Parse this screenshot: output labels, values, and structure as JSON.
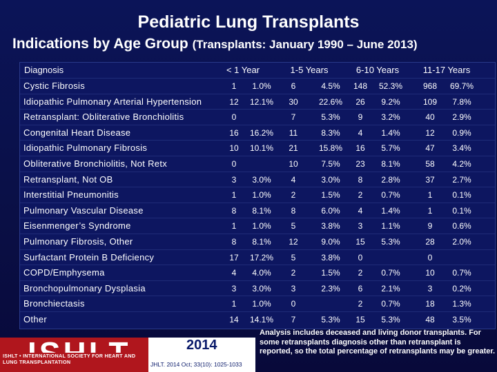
{
  "header": {
    "title": "Pediatric Lung Transplants",
    "subtitle": "Indications by Age Group",
    "subtitle_note": "(Transplants: January 1990 – June 2013)"
  },
  "table": {
    "columns": [
      "Diagnosis",
      "< 1 Year",
      "1-5 Years",
      "6-10 Years",
      "11-17 Years"
    ],
    "rows": [
      {
        "diagnosis": "Cystic Fibrosis",
        "cells": [
          "1",
          "1.0%",
          "6",
          "4.5%",
          "148",
          "52.3%",
          "968",
          "69.7%"
        ]
      },
      {
        "diagnosis": "Idiopathic Pulmonary Arterial Hypertension",
        "cells": [
          "12",
          "12.1%",
          "30",
          "22.6%",
          "26",
          "9.2%",
          "109",
          "7.8%"
        ]
      },
      {
        "diagnosis": "Retransplant: Obliterative Bronchiolitis",
        "cells": [
          "0",
          null,
          "7",
          "5.3%",
          "9",
          "3.2%",
          "40",
          "2.9%"
        ]
      },
      {
        "diagnosis": "Congenital Heart Disease",
        "cells": [
          "16",
          "16.2%",
          "11",
          "8.3%",
          "4",
          "1.4%",
          "12",
          "0.9%"
        ]
      },
      {
        "diagnosis": "Idiopathic Pulmonary Fibrosis",
        "cells": [
          "10",
          "10.1%",
          "21",
          "15.8%",
          "16",
          "5.7%",
          "47",
          "3.4%"
        ]
      },
      {
        "diagnosis": "Obliterative Bronchiolitis, Not Retx",
        "cells": [
          "0",
          null,
          "10",
          "7.5%",
          "23",
          "8.1%",
          "58",
          "4.2%"
        ]
      },
      {
        "diagnosis": "Retransplant, Not OB",
        "cells": [
          "3",
          "3.0%",
          "4",
          "3.0%",
          "8",
          "2.8%",
          "37",
          "2.7%"
        ]
      },
      {
        "diagnosis": "Interstitial Pneumonitis",
        "cells": [
          "1",
          "1.0%",
          "2",
          "1.5%",
          "2",
          "0.7%",
          "1",
          "0.1%"
        ]
      },
      {
        "diagnosis": "Pulmonary Vascular Disease",
        "cells": [
          "8",
          "8.1%",
          "8",
          "6.0%",
          "4",
          "1.4%",
          "1",
          "0.1%"
        ]
      },
      {
        "diagnosis": "Eisenmenger’s Syndrome",
        "cells": [
          "1",
          "1.0%",
          "5",
          "3.8%",
          "3",
          "1.1%",
          "9",
          "0.6%"
        ]
      },
      {
        "diagnosis": "Pulmonary Fibrosis, Other",
        "cells": [
          "8",
          "8.1%",
          "12",
          "9.0%",
          "15",
          "5.3%",
          "28",
          "2.0%"
        ]
      },
      {
        "diagnosis": "Surfactant Protein B Deficiency",
        "cells": [
          "17",
          "17.2%",
          "5",
          "3.8%",
          "0",
          null,
          "0",
          null
        ]
      },
      {
        "diagnosis": "COPD/Emphysema",
        "cells": [
          "4",
          "4.0%",
          "2",
          "1.5%",
          "2",
          "0.7%",
          "10",
          "0.7%"
        ]
      },
      {
        "diagnosis": "Bronchopulmonary Dysplasia",
        "cells": [
          "3",
          "3.0%",
          "3",
          "2.3%",
          "6",
          "2.1%",
          "3",
          "0.2%"
        ]
      },
      {
        "diagnosis": "Bronchiectasis",
        "cells": [
          "1",
          "1.0%",
          "0",
          null,
          "2",
          "0.7%",
          "18",
          "1.3%"
        ]
      },
      {
        "diagnosis": "Other",
        "cells": [
          "14",
          "14.1%",
          "7",
          "5.3%",
          "15",
          "5.3%",
          "48",
          "3.5%"
        ]
      }
    ]
  },
  "footer": {
    "logo": "ISHLT",
    "logo_subtitle": "ISHLT • INTERNATIONAL SOCIETY FOR HEART AND LUNG TRANSPLANTATION",
    "year": "2014",
    "citation": "JHLT. 2014 Oct; 33(10): 1025-1033",
    "note": "Analysis includes deceased and living donor transplants. For some retransplants diagnosis other than retransplant is reported, so the total percentage of retransplants may be greater."
  }
}
